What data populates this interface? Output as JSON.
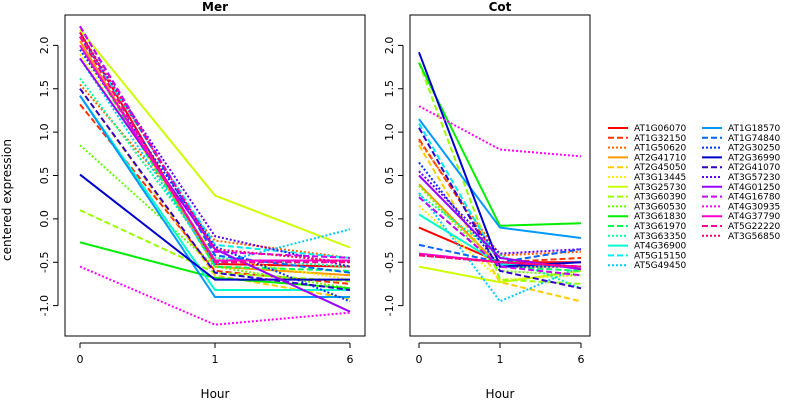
{
  "chart_data": {
    "type": "line",
    "ylabel": "centered expression",
    "xlabel": "Hour",
    "x_categories": [
      "0",
      "1",
      "6"
    ],
    "y_ticks": [
      "-1.0",
      "-0.5",
      "0.0",
      "0.5",
      "1.0",
      "1.5",
      "2.0"
    ],
    "ylim": [
      -1.35,
      2.35
    ],
    "legend_placement": "right",
    "series": [
      {
        "name": "AT1G06070",
        "color": "#ff0000",
        "dash": "solid"
      },
      {
        "name": "AT1G32150",
        "color": "#ff3300",
        "dash": "dashed"
      },
      {
        "name": "AT1G50620",
        "color": "#ff6600",
        "dash": "dotted"
      },
      {
        "name": "AT2G41710",
        "color": "#ff9900",
        "dash": "solid"
      },
      {
        "name": "AT2G45050",
        "color": "#ffcc00",
        "dash": "dashed"
      },
      {
        "name": "AT3G13445",
        "color": "#ffee00",
        "dash": "dotted"
      },
      {
        "name": "AT3G25730",
        "color": "#ccff00",
        "dash": "solid"
      },
      {
        "name": "AT3G60390",
        "color": "#99ff00",
        "dash": "dashed"
      },
      {
        "name": "AT3G60530",
        "color": "#66ff00",
        "dash": "dotted"
      },
      {
        "name": "AT3G61830",
        "color": "#00ee00",
        "dash": "solid"
      },
      {
        "name": "AT3G61970",
        "color": "#00ff55",
        "dash": "dashed"
      },
      {
        "name": "AT3G63350",
        "color": "#00ff99",
        "dash": "dotted"
      },
      {
        "name": "AT4G36900",
        "color": "#00ffcc",
        "dash": "solid"
      },
      {
        "name": "AT5G15150",
        "color": "#00eeee",
        "dash": "dashed"
      },
      {
        "name": "AT5G49450",
        "color": "#00ccff",
        "dash": "dotted"
      },
      {
        "name": "AT1G18570",
        "color": "#0099ff",
        "dash": "solid"
      },
      {
        "name": "AT1G74840",
        "color": "#0066ff",
        "dash": "dashed"
      },
      {
        "name": "AT2G30250",
        "color": "#0033ff",
        "dash": "dotted"
      },
      {
        "name": "AT2G36990",
        "color": "#0000cc",
        "dash": "solid"
      },
      {
        "name": "AT2G41070",
        "color": "#3300cc",
        "dash": "dashed"
      },
      {
        "name": "AT3G57230",
        "color": "#6600ff",
        "dash": "dotted"
      },
      {
        "name": "AT4G01250",
        "color": "#9900ff",
        "dash": "solid"
      },
      {
        "name": "AT4G16780",
        "color": "#cc00ff",
        "dash": "dashed"
      },
      {
        "name": "AT4G30935",
        "color": "#ff00ff",
        "dash": "dotted"
      },
      {
        "name": "AT4G37790",
        "color": "#ff00cc",
        "dash": "solid"
      },
      {
        "name": "AT5G22220",
        "color": "#ff0099",
        "dash": "dashed"
      },
      {
        "name": "AT3G56850",
        "color": "#ff0066",
        "dash": "dotted"
      }
    ],
    "panels": [
      {
        "title": "Mer",
        "values": [
          [
            2.15,
            -0.52,
            -0.55
          ],
          [
            1.32,
            -0.6,
            -0.75
          ],
          [
            1.55,
            -0.25,
            -0.45
          ],
          [
            2.05,
            -0.55,
            -0.65
          ],
          [
            1.5,
            -0.65,
            -0.92
          ],
          [
            1.9,
            -0.45,
            -0.7
          ],
          [
            2.18,
            0.27,
            -0.33
          ],
          [
            0.1,
            -0.62,
            -0.72
          ],
          [
            0.85,
            -0.55,
            -0.8
          ],
          [
            -0.27,
            -0.68,
            -0.8
          ],
          [
            2.0,
            -0.55,
            -0.6
          ],
          [
            1.62,
            -0.45,
            -0.55
          ],
          [
            1.42,
            -0.82,
            -0.82
          ],
          [
            2.1,
            -0.3,
            -0.45
          ],
          [
            1.85,
            -0.52,
            -0.12
          ],
          [
            1.42,
            -0.9,
            -0.9
          ],
          [
            2.22,
            -0.42,
            -0.62
          ],
          [
            1.95,
            -0.32,
            -0.95
          ],
          [
            0.51,
            -0.7,
            -0.7
          ],
          [
            1.5,
            -0.62,
            -0.82
          ],
          [
            2.1,
            -0.2,
            -0.55
          ],
          [
            1.85,
            -0.35,
            -1.07
          ],
          [
            2.22,
            -0.38,
            -0.45
          ],
          [
            -0.55,
            -1.22,
            -1.08
          ],
          [
            2.0,
            -0.48,
            -0.48
          ],
          [
            2.1,
            -0.5,
            -0.5
          ],
          [
            2.15,
            -0.35,
            -0.5
          ]
        ]
      },
      {
        "title": "Cot",
        "values": [
          [
            -0.1,
            -0.5,
            -0.5
          ],
          [
            0.92,
            -0.5,
            -0.45
          ],
          [
            0.9,
            -0.42,
            -0.38
          ],
          [
            0.4,
            -0.55,
            -0.55
          ],
          [
            0.85,
            -0.73,
            -0.95
          ],
          [
            0.15,
            -0.7,
            -0.65
          ],
          [
            -0.55,
            -0.73,
            -0.6
          ],
          [
            1.8,
            -0.7,
            -0.75
          ],
          [
            0.38,
            -0.6,
            -0.65
          ],
          [
            1.8,
            -0.08,
            -0.05
          ],
          [
            0.25,
            -0.55,
            -0.6
          ],
          [
            0.28,
            -0.42,
            -0.8
          ],
          [
            0.05,
            -0.52,
            -0.55
          ],
          [
            1.1,
            -0.52,
            -0.55
          ],
          [
            0.3,
            -0.95,
            -0.55
          ],
          [
            1.15,
            -0.1,
            -0.22
          ],
          [
            -0.3,
            -0.5,
            -0.35
          ],
          [
            0.65,
            -0.55,
            -0.55
          ],
          [
            1.92,
            -0.55,
            -0.5
          ],
          [
            1.05,
            -0.6,
            -0.8
          ],
          [
            0.55,
            -0.4,
            -0.35
          ],
          [
            0.5,
            -0.45,
            -0.58
          ],
          [
            0.25,
            -0.55,
            -0.65
          ],
          [
            1.3,
            0.8,
            0.72
          ],
          [
            -0.4,
            -0.5,
            -0.55
          ],
          [
            -0.42,
            -0.5,
            -0.55
          ],
          [
            -0.42,
            -0.5,
            -0.55
          ]
        ]
      }
    ]
  }
}
